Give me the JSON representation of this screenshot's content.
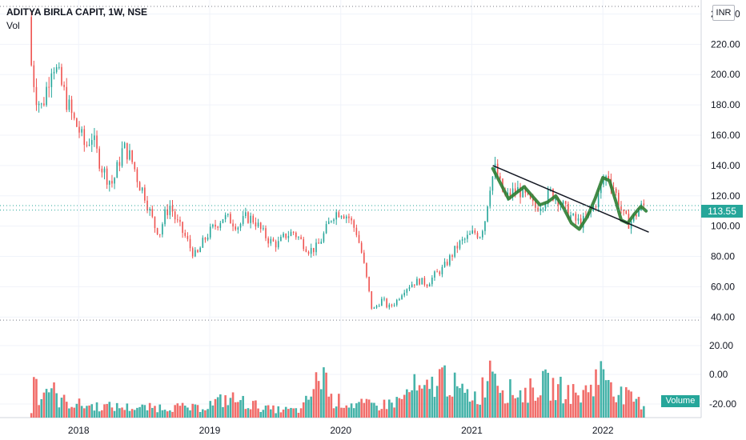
{
  "header": {
    "title": "ADITYA BIRLA CAPIT, 1W, NSE",
    "vol_label": "Vol",
    "currency": "INR"
  },
  "last_price_label": "113.55",
  "volume_label": "Volume",
  "colors": {
    "up": "#26a69a",
    "down": "#ef5350",
    "pattern": "#2e7d32",
    "trend": "#131722",
    "grid": "#f0f3fa",
    "axis_text": "#131722"
  },
  "chart_data": {
    "type": "candlestick",
    "title": "ADITYA BIRLA CAPIT, 1W, NSE",
    "x_ticks": [
      "2018",
      "2019",
      "2020",
      "2021",
      "2022"
    ],
    "y_ticks": [
      "240.00",
      "220.00",
      "200.00",
      "180.00",
      "160.00",
      "140.00",
      "120.00",
      "100.00",
      "80.00",
      "60.00",
      "40.00"
    ],
    "volume_axis_ticks": [
      "20.00",
      "0.00",
      "-20.00"
    ],
    "y_range": [
      37,
      245
    ],
    "x_range": [
      2017.4,
      2022.75
    ],
    "price_path": [
      [
        2017.62,
        238
      ],
      [
        2017.64,
        205
      ],
      [
        2017.68,
        185
      ],
      [
        2017.72,
        178
      ],
      [
        2017.76,
        193
      ],
      [
        2017.8,
        210
      ],
      [
        2017.84,
        200
      ],
      [
        2017.88,
        190
      ],
      [
        2017.92,
        180
      ],
      [
        2017.96,
        170
      ],
      [
        2018.0,
        164
      ],
      [
        2018.05,
        152
      ],
      [
        2018.1,
        160
      ],
      [
        2018.14,
        148
      ],
      [
        2018.18,
        138
      ],
      [
        2018.22,
        132
      ],
      [
        2018.26,
        128
      ],
      [
        2018.3,
        140
      ],
      [
        2018.34,
        152
      ],
      [
        2018.38,
        148
      ],
      [
        2018.42,
        140
      ],
      [
        2018.46,
        128
      ],
      [
        2018.5,
        122
      ],
      [
        2018.54,
        110
      ],
      [
        2018.58,
        100
      ],
      [
        2018.62,
        96
      ],
      [
        2018.66,
        108
      ],
      [
        2018.7,
        114
      ],
      [
        2018.74,
        104
      ],
      [
        2018.78,
        98
      ],
      [
        2018.82,
        92
      ],
      [
        2018.86,
        84
      ],
      [
        2018.9,
        80
      ],
      [
        2018.94,
        88
      ],
      [
        2018.98,
        94
      ],
      [
        2019.04,
        100
      ],
      [
        2019.1,
        106
      ],
      [
        2019.16,
        104
      ],
      [
        2019.22,
        100
      ],
      [
        2019.28,
        106
      ],
      [
        2019.34,
        104
      ],
      [
        2019.4,
        96
      ],
      [
        2019.46,
        90
      ],
      [
        2019.52,
        88
      ],
      [
        2019.58,
        94
      ],
      [
        2019.64,
        96
      ],
      [
        2019.7,
        90
      ],
      [
        2019.76,
        84
      ],
      [
        2019.82,
        86
      ],
      [
        2019.88,
        96
      ],
      [
        2019.94,
        108
      ],
      [
        2020.0,
        110
      ],
      [
        2020.06,
        106
      ],
      [
        2020.12,
        96
      ],
      [
        2020.16,
        82
      ],
      [
        2020.2,
        64
      ],
      [
        2020.24,
        44
      ],
      [
        2020.28,
        48
      ],
      [
        2020.32,
        52
      ],
      [
        2020.36,
        46
      ],
      [
        2020.42,
        50
      ],
      [
        2020.48,
        58
      ],
      [
        2020.54,
        62
      ],
      [
        2020.6,
        64
      ],
      [
        2020.66,
        62
      ],
      [
        2020.72,
        68
      ],
      [
        2020.78,
        72
      ],
      [
        2020.84,
        80
      ],
      [
        2020.9,
        88
      ],
      [
        2020.96,
        92
      ],
      [
        2021.02,
        96
      ],
      [
        2021.06,
        94
      ],
      [
        2021.1,
        104
      ],
      [
        2021.14,
        128
      ],
      [
        2021.18,
        138
      ],
      [
        2021.22,
        126
      ],
      [
        2021.26,
        118
      ],
      [
        2021.3,
        122
      ],
      [
        2021.36,
        124
      ],
      [
        2021.42,
        118
      ],
      [
        2021.48,
        112
      ],
      [
        2021.54,
        116
      ],
      [
        2021.6,
        122
      ],
      [
        2021.66,
        118
      ],
      [
        2021.72,
        110
      ],
      [
        2021.78,
        104
      ],
      [
        2021.84,
        102
      ],
      [
        2021.9,
        108
      ],
      [
        2021.96,
        118
      ],
      [
        2022.0,
        130
      ],
      [
        2022.04,
        134
      ],
      [
        2022.08,
        126
      ],
      [
        2022.12,
        116
      ],
      [
        2022.16,
        106
      ],
      [
        2022.2,
        102
      ],
      [
        2022.24,
        106
      ],
      [
        2022.28,
        112
      ],
      [
        2022.32,
        113.55
      ]
    ],
    "pattern_path": [
      [
        2021.16,
        138
      ],
      [
        2021.22,
        128
      ],
      [
        2021.28,
        118
      ],
      [
        2021.34,
        122
      ],
      [
        2021.4,
        126
      ],
      [
        2021.46,
        120
      ],
      [
        2021.52,
        114
      ],
      [
        2021.58,
        116
      ],
      [
        2021.64,
        120
      ],
      [
        2021.7,
        112
      ],
      [
        2021.76,
        102
      ],
      [
        2021.82,
        98
      ],
      [
        2021.88,
        106
      ],
      [
        2021.94,
        118
      ],
      [
        2022.0,
        132
      ],
      [
        2022.05,
        130
      ],
      [
        2022.1,
        116
      ],
      [
        2022.14,
        104
      ],
      [
        2022.19,
        102
      ],
      [
        2022.24,
        108
      ],
      [
        2022.29,
        113
      ],
      [
        2022.33,
        110
      ]
    ],
    "trendline": [
      [
        2021.16,
        140
      ],
      [
        2022.35,
        96
      ]
    ],
    "volume_peaks": [
      [
        2017.64,
        0.95
      ],
      [
        2017.7,
        0.35
      ],
      [
        2017.78,
        0.55
      ],
      [
        2017.84,
        0.3
      ],
      [
        2017.92,
        0.25
      ],
      [
        2018.05,
        0.2
      ],
      [
        2018.25,
        0.18
      ],
      [
        2018.5,
        0.16
      ],
      [
        2018.7,
        0.18
      ],
      [
        2018.9,
        0.15
      ],
      [
        2019.15,
        0.32
      ],
      [
        2019.45,
        0.14
      ],
      [
        2019.7,
        0.12
      ],
      [
        2019.88,
        0.8
      ],
      [
        2019.92,
        0.3
      ],
      [
        2020.1,
        0.22
      ],
      [
        2020.3,
        0.2
      ],
      [
        2020.45,
        0.28
      ],
      [
        2020.56,
        0.5
      ],
      [
        2020.62,
        0.38
      ],
      [
        2020.78,
        0.7
      ],
      [
        2020.92,
        0.4
      ],
      [
        2021.06,
        0.35
      ],
      [
        2021.16,
        1.0
      ],
      [
        2021.24,
        0.45
      ],
      [
        2021.4,
        0.4
      ],
      [
        2021.55,
        0.55
      ],
      [
        2021.7,
        0.45
      ],
      [
        2021.84,
        0.35
      ],
      [
        2021.96,
        0.7
      ],
      [
        2022.04,
        0.72
      ],
      [
        2022.12,
        0.4
      ],
      [
        2022.22,
        0.3
      ],
      [
        2022.33,
        0.2
      ]
    ]
  }
}
